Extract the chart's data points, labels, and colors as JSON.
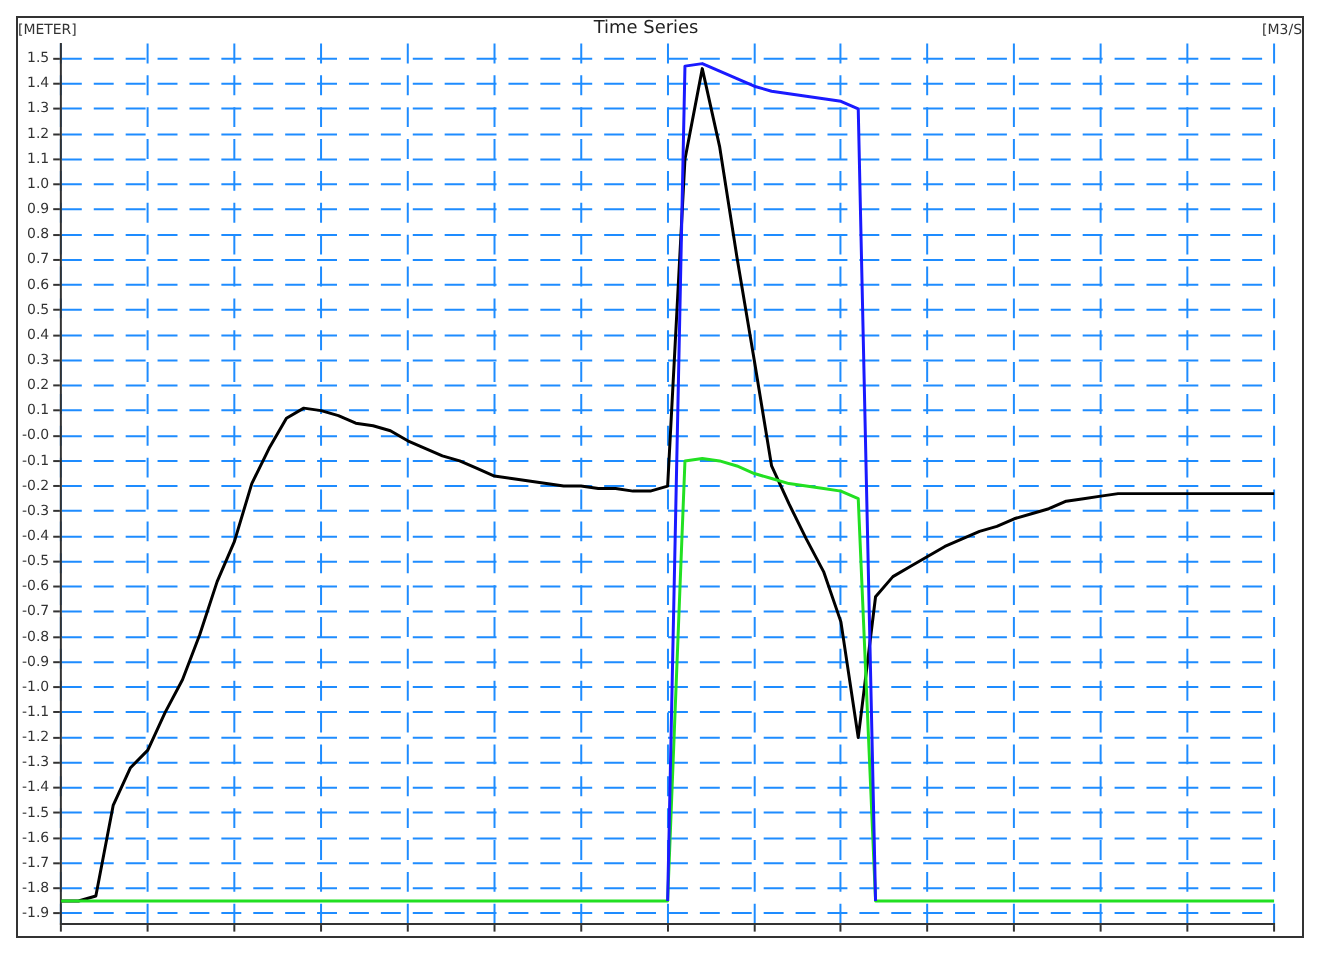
{
  "chart_data": {
    "type": "line",
    "title": "Time Series",
    "ylabel": "[METER]",
    "y2label": "[M3/S",
    "categories": [
      null,
      null,
      null,
      null,
      null,
      null,
      null,
      null,
      null,
      null,
      null,
      null,
      null,
      null,
      null,
      null,
      null,
      null,
      null,
      null,
      null,
      null,
      null,
      null,
      null,
      null,
      null,
      null,
      null,
      null,
      null,
      null,
      null,
      null,
      null,
      null,
      null,
      null,
      null,
      null,
      null,
      null,
      null,
      null,
      null,
      null,
      null,
      null,
      null,
      null,
      null,
      null,
      null,
      null,
      null,
      null,
      null,
      null,
      null,
      null,
      null,
      null,
      null,
      null,
      null,
      null,
      null,
      null,
      null,
      null,
      null
    ],
    "ylim": [
      -1.94,
      1.56
    ],
    "yticks": [
      {
        "value": -1.9,
        "label": "-1.9"
      },
      {
        "value": -1.8,
        "label": "-1.8"
      },
      {
        "value": -1.7,
        "label": "-1.7"
      },
      {
        "value": -1.6,
        "label": "-1.6"
      },
      {
        "value": -1.5,
        "label": "-1.5"
      },
      {
        "value": -1.4,
        "label": "-1.4"
      },
      {
        "value": -1.3,
        "label": "-1.3"
      },
      {
        "value": -1.2,
        "label": "-1.2"
      },
      {
        "value": -1.1,
        "label": "-1.1"
      },
      {
        "value": -1,
        "label": "-1.0"
      },
      {
        "value": -0.9,
        "label": "-0.9"
      },
      {
        "value": -0.8,
        "label": "-0.8"
      },
      {
        "value": -0.7,
        "label": "-0.7"
      },
      {
        "value": -0.6,
        "label": "-0.6"
      },
      {
        "value": -0.5,
        "label": "-0.5"
      },
      {
        "value": -0.4,
        "label": "-0.4"
      },
      {
        "value": -0.3,
        "label": "-0.3"
      },
      {
        "value": -0.2,
        "label": "-0.2"
      },
      {
        "value": -0.1,
        "label": "-0.1"
      },
      {
        "value": 0,
        "label": "-0.0"
      },
      {
        "value": 0.1,
        "label": "0.1"
      },
      {
        "value": 0.2,
        "label": "0.2"
      },
      {
        "value": 0.3,
        "label": "0.3"
      },
      {
        "value": 0.4,
        "label": "0.4"
      },
      {
        "value": 0.5,
        "label": "0.5"
      },
      {
        "value": 0.6,
        "label": "0.6"
      },
      {
        "value": 0.7,
        "label": "0.7"
      },
      {
        "value": 0.8,
        "label": "0.8"
      },
      {
        "value": 0.9,
        "label": "0.9"
      },
      {
        "value": 1,
        "label": "1.0"
      },
      {
        "value": 1.1,
        "label": "1.1"
      },
      {
        "value": 1.2,
        "label": "1.2"
      },
      {
        "value": 1.3,
        "label": "1.3"
      },
      {
        "value": 1.4,
        "label": "1.4"
      },
      {
        "value": 1.5,
        "label": "1.5"
      }
    ],
    "tick_labels": "y",
    "grid": true,
    "legend": false,
    "marker": "none",
    "line_style": "solid",
    "series": [
      {
        "color": "#1a1aff",
        "values": [
          null,
          null,
          null,
          null,
          null,
          null,
          null,
          null,
          null,
          null,
          null,
          null,
          null,
          null,
          null,
          null,
          null,
          null,
          null,
          null,
          null,
          null,
          null,
          null,
          null,
          null,
          null,
          null,
          null,
          null,
          null,
          null,
          null,
          null,
          null,
          -1.85,
          1.47,
          1.48,
          1.45,
          1.42,
          1.39,
          1.37,
          1.36,
          1.35,
          1.34,
          1.33,
          1.3,
          -1.85,
          null,
          null,
          null,
          null,
          null,
          null,
          null,
          null,
          null,
          null,
          null,
          null,
          null,
          null,
          null,
          null,
          null,
          null,
          null,
          null,
          null,
          null,
          null
        ]
      },
      {
        "color": "#22e022",
        "values": [
          -1.85,
          -1.85,
          -1.85,
          -1.85,
          -1.85,
          -1.85,
          -1.85,
          -1.85,
          -1.85,
          -1.85,
          -1.85,
          -1.85,
          -1.85,
          -1.85,
          -1.85,
          -1.85,
          -1.85,
          -1.85,
          -1.85,
          -1.85,
          -1.85,
          -1.85,
          -1.85,
          -1.85,
          -1.85,
          -1.85,
          -1.85,
          -1.85,
          -1.85,
          -1.85,
          -1.85,
          -1.85,
          -1.85,
          -1.85,
          -1.85,
          -1.85,
          -0.1,
          -0.09,
          -0.1,
          -0.12,
          -0.15,
          -0.17,
          -0.19,
          -0.2,
          -0.21,
          -0.22,
          -0.25,
          -1.85,
          -1.85,
          -1.85,
          -1.85,
          -1.85,
          -1.85,
          -1.85,
          -1.85,
          -1.85,
          -1.85,
          -1.85,
          -1.85,
          -1.85,
          -1.85,
          -1.85,
          -1.85,
          -1.85,
          -1.85,
          -1.85,
          -1.85,
          -1.85,
          -1.85,
          -1.85,
          -1.85
        ]
      },
      {
        "color": "#000000",
        "values": [
          -1.85,
          -1.85,
          -1.83,
          -1.47,
          -1.32,
          -1.25,
          -1.1,
          -0.97,
          -0.79,
          -0.58,
          -0.42,
          -0.19,
          -0.05,
          0.07,
          0.11,
          0.1,
          0.08,
          0.05,
          0.04,
          0.02,
          -0.02,
          -0.05,
          -0.08,
          -0.1,
          -0.13,
          -0.16,
          -0.17,
          -0.18,
          -0.19,
          -0.2,
          -0.2,
          -0.21,
          -0.21,
          -0.22,
          -0.22,
          -0.2,
          1.1,
          1.46,
          1.15,
          0.71,
          0.3,
          -0.12,
          -0.27,
          -0.41,
          -0.54,
          -0.74,
          -1.2,
          -0.64,
          -0.56,
          -0.52,
          -0.48,
          -0.44,
          -0.41,
          -0.38,
          -0.36,
          -0.33,
          -0.31,
          -0.29,
          -0.26,
          -0.25,
          -0.24,
          -0.23,
          -0.23,
          -0.23,
          -0.23,
          -0.23,
          -0.23,
          -0.23,
          -0.23,
          -0.23,
          -0.23
        ]
      }
    ]
  }
}
